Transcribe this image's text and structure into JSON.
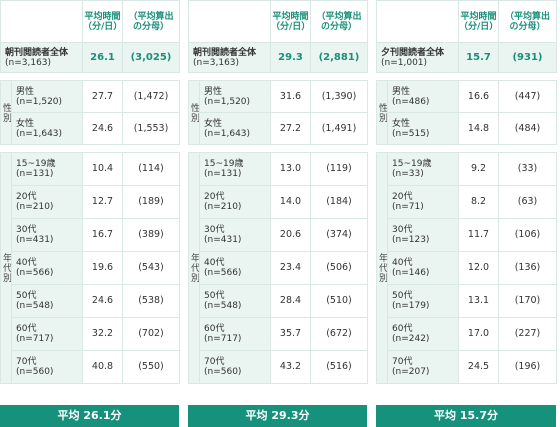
{
  "header": {
    "avg_time": "平均時間\n（分/日）",
    "denominator": "（平均算出\nの分母）"
  },
  "panels": [
    {
      "id": "morning",
      "total": {
        "label": "朝刊閲読者全体",
        "n": "(n=3,163)",
        "avg": "26.1",
        "den": "(3,025)"
      },
      "gender_label": "性別",
      "gender": [
        {
          "label": "男性",
          "n": "(n=1,520)",
          "avg": "27.7",
          "den": "(1,472)"
        },
        {
          "label": "女性",
          "n": "(n=1,643)",
          "avg": "24.6",
          "den": "(1,553)"
        }
      ],
      "age_label": "年代別",
      "ages": [
        {
          "label": "15~19歳",
          "n": "(n=131)",
          "avg": "10.4",
          "den": "(114)"
        },
        {
          "label": "20代",
          "n": "(n=210)",
          "avg": "12.7",
          "den": "(189)"
        },
        {
          "label": "30代",
          "n": "(n=431)",
          "avg": "16.7",
          "den": "(389)"
        },
        {
          "label": "40代",
          "n": "(n=566)",
          "avg": "19.6",
          "den": "(543)"
        },
        {
          "label": "50代",
          "n": "(n=548)",
          "avg": "24.6",
          "den": "(538)"
        },
        {
          "label": "60代",
          "n": "(n=717)",
          "avg": "32.2",
          "den": "(702)"
        },
        {
          "label": "70代",
          "n": "(n=560)",
          "avg": "40.8",
          "den": "(550)"
        }
      ],
      "footer": "平均 26.1分"
    },
    {
      "id": "morning-2",
      "total": {
        "label": "朝刊閲読者全体",
        "n": "(n=3,163)",
        "avg": "29.3",
        "den": "(2,881)"
      },
      "gender_label": "性別",
      "gender": [
        {
          "label": "男性",
          "n": "(n=1,520)",
          "avg": "31.6",
          "den": "(1,390)"
        },
        {
          "label": "女性",
          "n": "(n=1,643)",
          "avg": "27.2",
          "den": "(1,491)"
        }
      ],
      "age_label": "年代別",
      "ages": [
        {
          "label": "15~19歳",
          "n": "(n=131)",
          "avg": "13.0",
          "den": "(119)"
        },
        {
          "label": "20代",
          "n": "(n=210)",
          "avg": "14.0",
          "den": "(184)"
        },
        {
          "label": "30代",
          "n": "(n=431)",
          "avg": "20.6",
          "den": "(374)"
        },
        {
          "label": "40代",
          "n": "(n=566)",
          "avg": "23.4",
          "den": "(506)"
        },
        {
          "label": "50代",
          "n": "(n=548)",
          "avg": "28.4",
          "den": "(510)"
        },
        {
          "label": "60代",
          "n": "(n=717)",
          "avg": "35.7",
          "den": "(672)"
        },
        {
          "label": "70代",
          "n": "(n=560)",
          "avg": "43.2",
          "den": "(516)"
        }
      ],
      "footer": "平均 29.3分"
    },
    {
      "id": "evening",
      "total": {
        "label": "夕刊閲読者全体",
        "n": "(n=1,001)",
        "avg": "15.7",
        "den": "(931)"
      },
      "gender_label": "性別",
      "gender": [
        {
          "label": "男性",
          "n": "(n=486)",
          "avg": "16.6",
          "den": "(447)"
        },
        {
          "label": "女性",
          "n": "(n=515)",
          "avg": "14.8",
          "den": "(484)"
        }
      ],
      "age_label": "年代別",
      "ages": [
        {
          "label": "15~19歳",
          "n": "(n=33)",
          "avg": "9.2",
          "den": "(33)"
        },
        {
          "label": "20代",
          "n": "(n=71)",
          "avg": "8.2",
          "den": "(63)"
        },
        {
          "label": "30代",
          "n": "(n=123)",
          "avg": "11.7",
          "den": "(106)"
        },
        {
          "label": "40代",
          "n": "(n=146)",
          "avg": "12.0",
          "den": "(136)"
        },
        {
          "label": "50代",
          "n": "(n=179)",
          "avg": "13.1",
          "den": "(170)"
        },
        {
          "label": "60代",
          "n": "(n=242)",
          "avg": "17.0",
          "den": "(227)"
        },
        {
          "label": "70代",
          "n": "(n=207)",
          "avg": "24.5",
          "den": "(196)"
        }
      ],
      "footer": "平均 15.7分"
    }
  ]
}
